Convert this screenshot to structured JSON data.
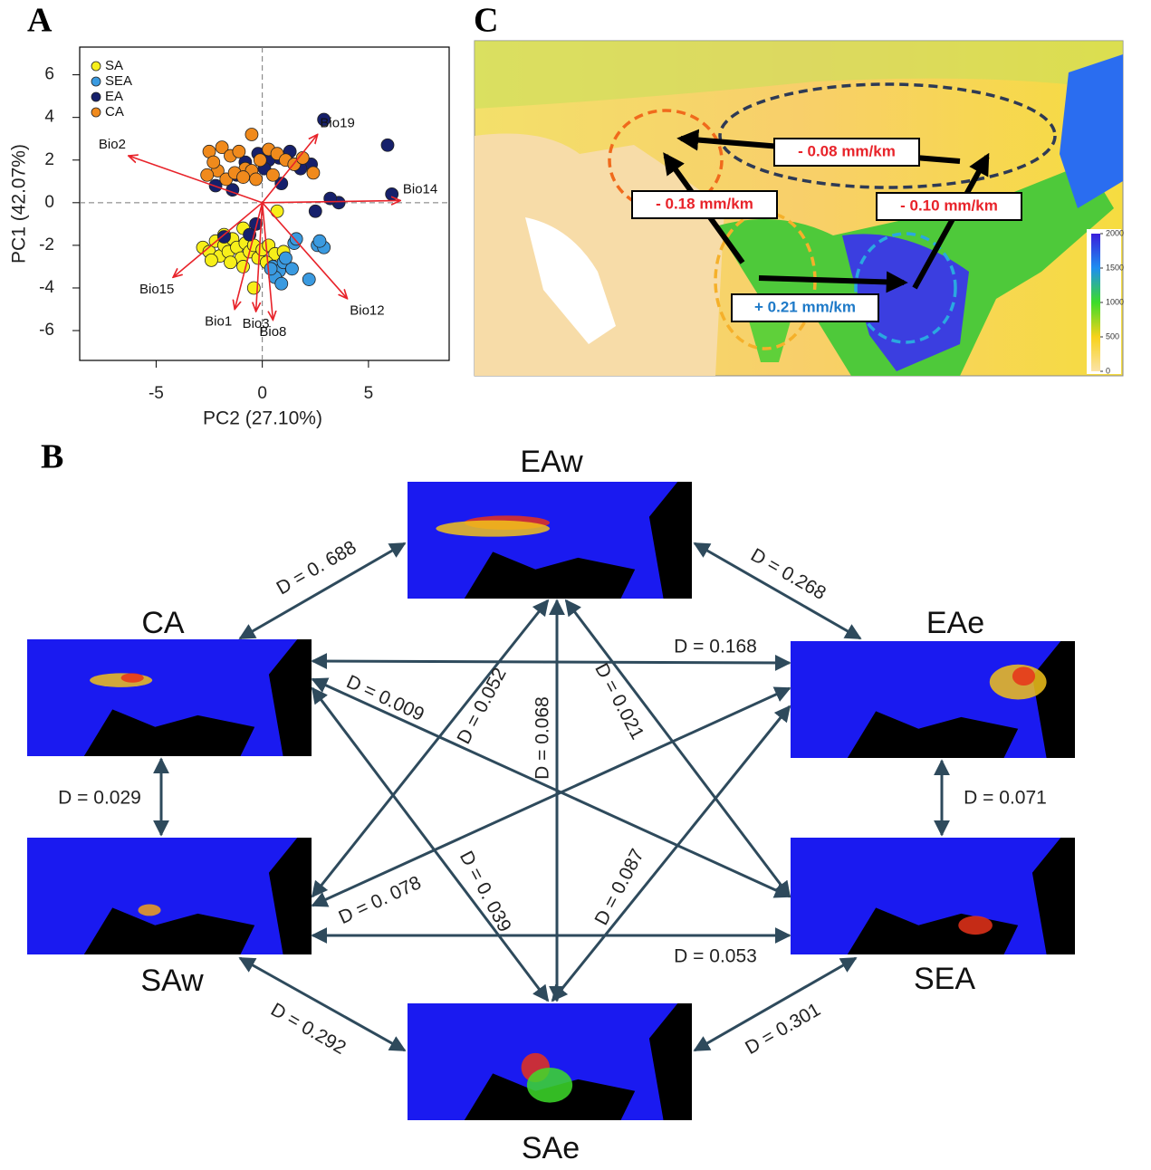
{
  "chart_data": {
    "type": "scatter",
    "panel_label": "A",
    "xlabel": "PC2 (27.10%)",
    "ylabel": "PC1 (42.07%)",
    "xlim": [
      -8.6,
      8.8
    ],
    "ylim": [
      -7.4,
      7.3
    ],
    "xticks": [
      -5,
      0,
      5
    ],
    "yticks": [
      -6,
      -4,
      -2,
      0,
      2,
      4,
      6
    ],
    "legend": "upper left",
    "series": [
      {
        "name": "SA",
        "color": "#f7ef1a",
        "x": [
          -2.8,
          -2.5,
          -2.2,
          -2,
          -1.8,
          -1.6,
          -1.4,
          -1.2,
          -1,
          -0.8,
          -0.6,
          -0.4,
          -0.2,
          0,
          0.3,
          0.6,
          1,
          -2.4,
          -1.5,
          -0.9,
          0.7,
          -0.9,
          -0.4,
          -1.8,
          0.2
        ],
        "values": [
          -2.1,
          -2.3,
          -1.8,
          -2.5,
          -2,
          -2.3,
          -1.7,
          -2.1,
          -2.6,
          -1.9,
          -2.3,
          -2,
          -2.6,
          -2.2,
          -2,
          -2.4,
          -2.3,
          -2.7,
          -2.8,
          -3,
          -0.4,
          -1.2,
          -4,
          -1.5,
          -2.8
        ]
      },
      {
        "name": "SEA",
        "color": "#3a9ae0",
        "x": [
          0.5,
          0.8,
          1,
          0.6,
          1.4,
          0.9,
          2.2,
          2.6,
          2.9,
          2.7,
          1.5,
          1.6,
          0.4,
          1.1
        ],
        "values": [
          -3,
          -3.2,
          -2.8,
          -3.5,
          -3.1,
          -3.8,
          -3.6,
          -2,
          -2.1,
          -1.8,
          -1.9,
          -1.7,
          -3.1,
          -2.6
        ]
      },
      {
        "name": "EA",
        "color": "#16206b",
        "x": [
          2.9,
          5.9,
          6.1,
          3.6,
          2.5,
          2.3,
          1.8,
          1.3,
          0.8,
          0.3,
          -0.2,
          -0.8,
          -1.2,
          -2.2,
          -1.4,
          -0.6,
          -0.3,
          -1.8,
          3.2,
          0.9,
          0.1
        ],
        "values": [
          3.9,
          2.7,
          0.4,
          0,
          -0.4,
          1.8,
          1.6,
          2.4,
          2.1,
          2,
          2.3,
          1.9,
          1.3,
          0.8,
          0.6,
          -1.5,
          -1,
          -1.6,
          0.2,
          0.9,
          1.6
        ]
      },
      {
        "name": "CA",
        "color": "#f08a1c",
        "x": [
          -0.5,
          -2.5,
          -1.9,
          -1.5,
          -1.1,
          -0.8,
          -0.5,
          -0.1,
          0.3,
          0.7,
          1.1,
          1.5,
          1.9,
          2.4,
          -2.1,
          -1.7,
          -1.3,
          -0.9,
          -0.3,
          0.5,
          -2.6,
          -2.3
        ],
        "values": [
          3.2,
          2.4,
          2.6,
          2.2,
          2.4,
          1.6,
          1.5,
          2,
          2.5,
          2.3,
          2,
          1.8,
          2.1,
          1.4,
          1.5,
          1.1,
          1.4,
          1.2,
          1.1,
          1.3,
          1.3,
          1.9
        ]
      }
    ],
    "loadings": [
      {
        "label": "Bio2",
        "x": -6.3,
        "y": 2.2
      },
      {
        "label": "Bio19",
        "x": 2.6,
        "y": 3.2
      },
      {
        "label": "Bio14",
        "x": 6.5,
        "y": 0.1
      },
      {
        "label": "Bio12",
        "x": 4,
        "y": -4.5
      },
      {
        "label": "Bio8",
        "x": 0.5,
        "y": -5.5
      },
      {
        "label": "Bio3",
        "x": -0.3,
        "y": -5.1
      },
      {
        "label": "Bio1",
        "x": -1.3,
        "y": -5
      },
      {
        "label": "Bio15",
        "x": -4.2,
        "y": -3.5
      }
    ]
  },
  "map": {
    "panel_label": "C",
    "annotations": [
      "- 0.08 mm/km",
      "- 0.18 mm/km",
      "- 0.10 mm/km",
      "+ 0.21 mm/km"
    ],
    "colorbar_ticks": [
      2000,
      1500,
      1000,
      500,
      0
    ]
  },
  "network": {
    "panel_label": "B",
    "nodes": [
      "EAw",
      "CA",
      "EAe",
      "SAw",
      "SEA",
      "SAe"
    ],
    "edges": [
      "D = 0. 688",
      "D = 0.268",
      "D = 0.168",
      "D = 0.029",
      "D = 0.071",
      "D = 0.053",
      "D = 0.292",
      "D = 0.301",
      "D = 0.068",
      "D = 0. 039",
      "D = 0.009",
      "D = 0.052",
      "D = 0.021",
      "D = 0. 078",
      "D = 0.087"
    ]
  }
}
